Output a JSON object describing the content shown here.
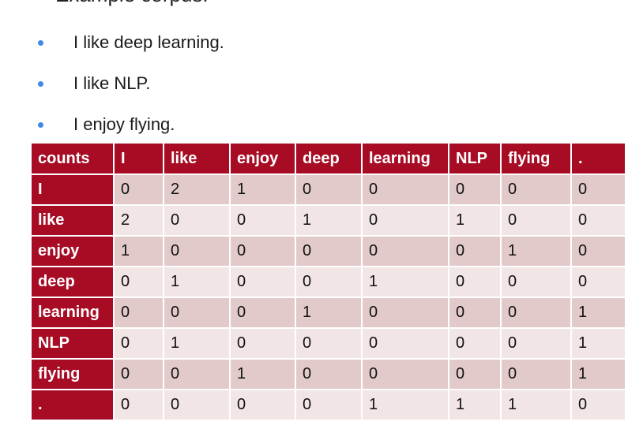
{
  "heading": "Example corpus:",
  "bullets": [
    "I like deep learning.",
    "I like NLP.",
    "I enjoy flying."
  ],
  "table": {
    "corner": "counts",
    "columns": [
      "I",
      "like",
      "enjoy",
      "deep",
      "learning",
      "NLP",
      "flying",
      "."
    ],
    "rows": [
      {
        "label": "I",
        "values": [
          "0",
          "2",
          "1",
          "0",
          "0",
          "0",
          "0",
          "0"
        ]
      },
      {
        "label": "like",
        "values": [
          "2",
          "0",
          "0",
          "1",
          "0",
          "1",
          "0",
          "0"
        ]
      },
      {
        "label": "enjoy",
        "values": [
          "1",
          "0",
          "0",
          "0",
          "0",
          "0",
          "1",
          "0"
        ]
      },
      {
        "label": "deep",
        "values": [
          "0",
          "1",
          "0",
          "0",
          "1",
          "0",
          "0",
          "0"
        ]
      },
      {
        "label": "learning",
        "values": [
          "0",
          "0",
          "0",
          "1",
          "0",
          "0",
          "0",
          "1"
        ]
      },
      {
        "label": "NLP",
        "values": [
          "0",
          "1",
          "0",
          "0",
          "0",
          "0",
          "0",
          "1"
        ]
      },
      {
        "label": "flying",
        "values": [
          "0",
          "0",
          "1",
          "0",
          "0",
          "0",
          "0",
          "1"
        ]
      },
      {
        "label": ".",
        "values": [
          "0",
          "0",
          "0",
          "0",
          "1",
          "1",
          "1",
          "0"
        ]
      }
    ]
  },
  "colors": {
    "header_red": "#a80c25",
    "row_dark": "#e3caca",
    "row_light": "#f1e5e5",
    "bullet_blue": "#3c8ce8"
  }
}
